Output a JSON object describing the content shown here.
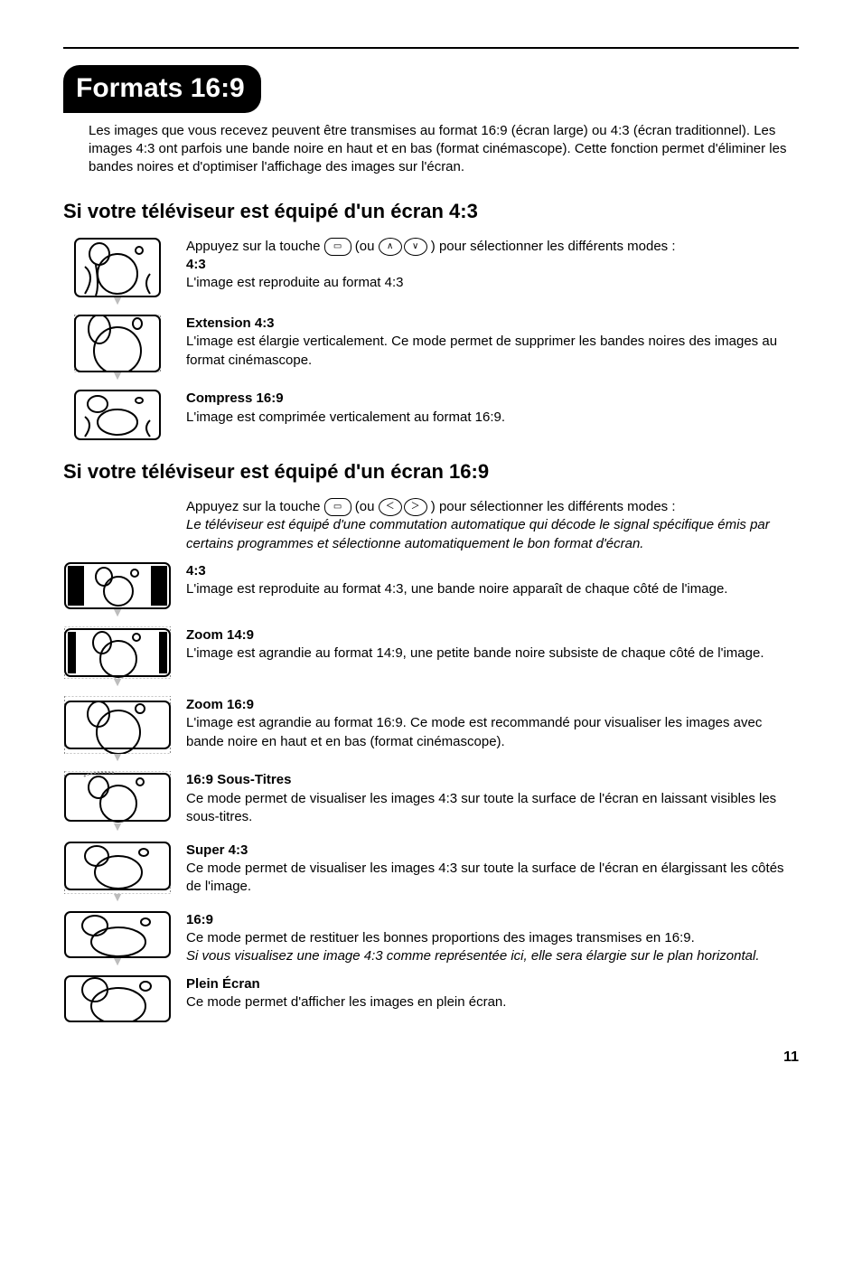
{
  "title": "Formats 16:9",
  "intro": "Les images que vous recevez peuvent être transmises au format 16:9 (écran large) ou 4:3 (écran traditionnel). Les images 4:3 ont parfois une bande noire en haut et en bas (format cinémascope). Cette fonction permet d'éliminer les bandes noires et d'optimiser l'affichage des images sur l'écran.",
  "section43": {
    "heading": "Si votre téléviseur est équipé d'un écran 4:3",
    "lead": "Appuyez sur la touche ",
    "lead2": " (ou ",
    "lead3": ") pour sélectionner les différents modes :",
    "items": [
      {
        "title": "4:3",
        "text": "L'image est reproduite au format 4:3"
      },
      {
        "title": "Extension 4:3",
        "text": "L'image est élargie verticalement. Ce mode permet de supprimer les bandes noires des images au format cinémascope."
      },
      {
        "title": "Compress 16:9",
        "text": "L'image est comprimée verticalement au format 16:9."
      }
    ]
  },
  "section169": {
    "heading": "Si votre téléviseur est équipé d'un écran 16:9",
    "lead": "Appuyez sur la touche ",
    "lead2": " (ou ",
    "lead3": ") pour sélectionner les différents modes :",
    "note": "Le téléviseur est équipé d'une commutation automatique qui décode le signal spécifique émis par certains programmes et sélectionne automatiquement le bon format d'écran.",
    "items": [
      {
        "title": "4:3",
        "text": "L'image est reproduite au format 4:3, une bande noire apparaît de chaque côté de l'image."
      },
      {
        "title": "Zoom 14:9",
        "text": "L'image est agrandie au format 14:9, une petite bande noire subsiste de chaque côté de l'image."
      },
      {
        "title": "Zoom 16:9",
        "text": "L'image est agrandie au format 16:9. Ce mode est recommandé pour visualiser les images avec bande noire en haut et en bas (format cinémascope)."
      },
      {
        "title": "16:9 Sous-Titres",
        "text": "Ce mode permet de visualiser les images 4:3 sur toute la surface de l'écran en laissant visibles les sous-titres."
      },
      {
        "title": "Super 4:3",
        "text": "Ce mode permet de visualiser les images 4:3 sur toute la surface de l'écran en élargissant les côtés de l'image."
      },
      {
        "title": "16:9",
        "text": "Ce mode permet de restituer les bonnes proportions des images transmises en 16:9.",
        "hint": "Si vous visualisez une image 4:3 comme représentée ici, elle sera élargie sur le plan horizontal."
      },
      {
        "title": "Plein Écran",
        "text": "Ce mode permet d'afficher les images en plein écran."
      }
    ]
  },
  "pageNumber": "11",
  "svg": {
    "tv43_normal": "<svg width='96' height='66' viewBox='0 0 96 66'><rect x='1' y='1' width='94' height='64' rx='6' fill='#fff' stroke='#000' stroke-width='2'/><g stroke='#000' stroke-width='2' fill='none'><ellipse cx='28' cy='18' rx='11' ry='12'/><ellipse cx='72' cy='14' rx='4' ry='4'/><path d='M24 30 q4 24 0 34'/><circle cx='48' cy='40' r='22'/><path d='M12 62 q12 -20 0 -30'/><path d='M84 62 q-8 -12 0 -22'/></g></svg>",
    "tv43_ext": "<svg width='96' height='64' viewBox='0 0 96 64'><rect x='0.5' y='0' width='95' height='8' fill='none' stroke='#888' stroke-width='1' stroke-dasharray='2 2'/><rect x='0.5' y='56' width='95' height='8' fill='none' stroke='#888' stroke-width='1' stroke-dasharray='2 2'/><rect x='1' y='1' width='94' height='62' rx='6' fill='#fff' stroke='#000' stroke-width='2'/><g stroke='#000' stroke-width='2' fill='none'><ellipse cx='28' cy='16' rx='12' ry='16'/><ellipse cx='70' cy='10' rx='5' ry='6'/><circle cx='48' cy='40' r='26'/></g></svg>",
    "tv43_comp": "<svg width='96' height='56' viewBox='0 0 96 56'><rect x='1' y='1' width='94' height='54' rx='6' fill='#fff' stroke='#000' stroke-width='2'/><g stroke='#000' stroke-width='2' fill='none'><ellipse cx='26' cy='16' rx='11' ry='9'/><ellipse cx='72' cy='12' rx='4' ry='3'/><ellipse cx='48' cy='36' rx='22' ry='14'/><path d='M12 52 q10 -14 0 -22'/><path d='M84 52 q-8 -10 0 -18'/></g></svg>",
    "tv169_43": "<svg width='118' height='52' viewBox='0 0 118 52'><rect x='1' y='1' width='116' height='50' rx='6' fill='#fff' stroke='#000' stroke-width='2'/><rect x='4' y='4' width='18' height='44' fill='#000'/><rect x='96' y='4' width='18' height='44' fill='#000'/><g stroke='#000' stroke-width='2' fill='none'><ellipse cx='44' cy='16' rx='9' ry='10'/><ellipse cx='78' cy='12' rx='4' ry='4'/><circle cx='60' cy='32' r='16'/></g></svg>",
    "tv169_zoom14": "<svg width='118' height='58' viewBox='0 0 118 58'><rect x='0.5' y='0' width='117' height='7' fill='none' stroke='#888' stroke-dasharray='2 2'/><rect x='0.5' y='51' width='117' height='7' fill='none' stroke='#888' stroke-dasharray='2 2'/><rect x='1' y='3' width='116' height='52' rx='6' fill='#fff' stroke='#000' stroke-width='2'/><rect x='4' y='6' width='9' height='46' fill='#000'/><rect x='105' y='6' width='9' height='46' fill='#000'/><g stroke='#000' stroke-width='2' fill='none'><ellipse cx='42' cy='18' rx='10' ry='12'/><ellipse cx='80' cy='12' rx='4' ry='4'/><circle cx='60' cy='36' r='20'/></g></svg>",
    "tv169_zoom16": "<svg width='118' height='64' viewBox='0 0 118 64'><rect x='0.5' y='0' width='117' height='10' fill='none' stroke='#888' stroke-dasharray='2 2'/><rect x='0.5' y='54' width='117' height='10' fill='none' stroke='#888' stroke-dasharray='2 2'/><rect x='1' y='6' width='116' height='52' rx='6' fill='#fff' stroke='#000' stroke-width='2'/><g stroke='#000' stroke-width='2' fill='none'><ellipse cx='38' cy='20' rx='12' ry='14'/><ellipse cx='84' cy='14' rx='5' ry='5'/><circle cx='60' cy='40' r='24'/></g></svg>",
    "tv169_sub": "<svg width='118' height='58' viewBox='0 0 118 58'><rect x='0.5' y='0' width='117' height='6' fill='none' stroke='#888' stroke-dasharray='2 2'/><rect x='1' y='3' width='116' height='52' rx='6' fill='#fff' stroke='#000' stroke-width='2'/><g stroke='#000' stroke-width='2' fill='none'><ellipse cx='38' cy='18' rx='11' ry='12'/><path d='M22 6 q8 -6 34 -4' stroke-dasharray='2 2' stroke='#888'/><ellipse cx='84' cy='12' rx='4' ry='4'/><circle cx='60' cy='36' r='20'/></g></svg>",
    "tv169_super": "<svg width='118' height='58' viewBox='0 0 118 58'><rect x='0.5' y='51' width='117' height='7' fill='none' stroke='#888' stroke-dasharray='2 2'/><rect x='1' y='1' width='116' height='52' rx='6' fill='#fff' stroke='#000' stroke-width='2'/><g stroke='#000' stroke-width='2' fill='none'><ellipse cx='36' cy='16' rx='13' ry='11'/><ellipse cx='88' cy='12' rx='5' ry='4'/><ellipse cx='60' cy='34' rx='26' ry='18'/></g></svg>",
    "tv169_wide": "<svg width='118' height='52' viewBox='0 0 118 52'><rect x='1' y='1' width='116' height='50' rx='6' fill='#fff' stroke='#000' stroke-width='2'/><g stroke='#000' stroke-width='2' fill='none'><ellipse cx='34' cy='16' rx='14' ry='11'/><ellipse cx='90' cy='12' rx='5' ry='4'/><ellipse cx='60' cy='34' rx='30' ry='16'/></g></svg>",
    "tv169_full": "<svg width='118' height='52' viewBox='0 0 118 52'><rect x='1' y='1' width='116' height='50' rx='6' fill='#fff' stroke='#000' stroke-width='2'/><g stroke='#000' stroke-width='2' fill='none'><ellipse cx='34' cy='16' rx='14' ry='13'/><ellipse cx='90' cy='12' rx='6' ry='5'/><ellipse cx='60' cy='34' rx='30' ry='20'/></g></svg>"
  }
}
